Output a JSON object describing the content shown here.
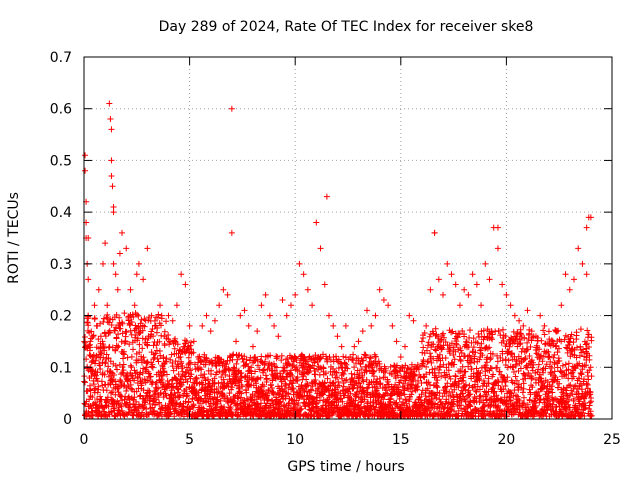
{
  "chart_data": {
    "type": "scatter",
    "title": "Day 289 of 2024, Rate Of TEC Index for receiver ske8",
    "xlabel": "GPS time / hours",
    "ylabel": "ROTI / TECUs",
    "xlim": [
      0,
      25
    ],
    "ylim": [
      0,
      0.7
    ],
    "xticks": [
      0,
      5,
      10,
      15,
      20,
      25
    ],
    "yticks": [
      0,
      0.1,
      0.2,
      0.3,
      0.4,
      0.5,
      0.6,
      0.7
    ],
    "xtick_labels": [
      "0",
      "5",
      "10",
      "15",
      "20",
      "25"
    ],
    "ytick_labels": [
      "0",
      "0.1",
      "0.2",
      "0.3",
      "0.4",
      "0.5",
      "0.6",
      "0.7"
    ],
    "grid": true,
    "marker": "+",
    "series_color": "#ff0000",
    "series": [
      {
        "name": "ROTI",
        "x": [
          0.05,
          0.05,
          0.1,
          0.1,
          0.15,
          0.2,
          0.2,
          0.3,
          0.3,
          0.4,
          0.5,
          0.6,
          0.7,
          0.8,
          0.9,
          1.0,
          1.1,
          1.2,
          1.25,
          1.3,
          1.3,
          1.35,
          1.4,
          1.4,
          1.5,
          1.6,
          1.7,
          1.8,
          2.0,
          2.2,
          2.4,
          2.5,
          2.6,
          2.8,
          3.0,
          3.2,
          3.4,
          3.6,
          3.8,
          4.0,
          4.2,
          4.4,
          4.6,
          4.8,
          5.0,
          5.2,
          5.4,
          5.6,
          5.8,
          6.0,
          6.2,
          6.4,
          6.6,
          6.8,
          7.0,
          7.2,
          7.4,
          7.6,
          7.8,
          8.0,
          8.2,
          8.4,
          8.6,
          8.8,
          9.0,
          9.2,
          9.4,
          9.6,
          9.8,
          10.0,
          10.2,
          10.4,
          10.6,
          10.8,
          11.0,
          11.2,
          11.4,
          11.6,
          11.8,
          12.0,
          12.2,
          12.4,
          12.6,
          12.8,
          13.0,
          13.2,
          13.4,
          13.6,
          13.8,
          14.0,
          14.2,
          14.4,
          14.6,
          14.8,
          15.0,
          15.2,
          15.4,
          15.6,
          15.8,
          16.0,
          16.2,
          16.4,
          16.6,
          16.8,
          17.0,
          17.2,
          17.4,
          17.6,
          17.8,
          18.0,
          18.2,
          18.4,
          18.6,
          18.8,
          19.0,
          19.2,
          19.4,
          19.6,
          19.8,
          20.0,
          20.2,
          20.4,
          20.6,
          20.8,
          21.0,
          21.2,
          21.4,
          21.6,
          21.8,
          22.0,
          22.2,
          22.4,
          22.6,
          22.8,
          23.0,
          23.2,
          23.4,
          23.6,
          23.8,
          24.0,
          0.1,
          0.2,
          1.3,
          1.4,
          7.0,
          11.5,
          16.6,
          19.6,
          23.8,
          23.9
        ],
        "y": [
          0.51,
          0.48,
          0.42,
          0.35,
          0.3,
          0.27,
          0.2,
          0.15,
          0.1,
          0.12,
          0.22,
          0.18,
          0.25,
          0.16,
          0.3,
          0.34,
          0.22,
          0.61,
          0.58,
          0.56,
          0.47,
          0.45,
          0.4,
          0.3,
          0.28,
          0.25,
          0.32,
          0.36,
          0.33,
          0.25,
          0.22,
          0.28,
          0.3,
          0.27,
          0.33,
          0.2,
          0.18,
          0.22,
          0.16,
          0.2,
          0.19,
          0.22,
          0.28,
          0.26,
          0.18,
          0.15,
          0.12,
          0.18,
          0.2,
          0.17,
          0.19,
          0.22,
          0.25,
          0.24,
          0.36,
          0.15,
          0.2,
          0.21,
          0.18,
          0.14,
          0.17,
          0.22,
          0.24,
          0.2,
          0.18,
          0.16,
          0.23,
          0.2,
          0.22,
          0.24,
          0.3,
          0.28,
          0.25,
          0.22,
          0.38,
          0.33,
          0.26,
          0.2,
          0.18,
          0.16,
          0.14,
          0.18,
          0.12,
          0.14,
          0.15,
          0.17,
          0.21,
          0.18,
          0.2,
          0.25,
          0.23,
          0.22,
          0.18,
          0.15,
          0.12,
          0.14,
          0.2,
          0.19,
          0.1,
          0.15,
          0.18,
          0.25,
          0.36,
          0.27,
          0.24,
          0.3,
          0.28,
          0.26,
          0.22,
          0.25,
          0.24,
          0.28,
          0.26,
          0.22,
          0.3,
          0.27,
          0.37,
          0.33,
          0.26,
          0.24,
          0.22,
          0.2,
          0.19,
          0.18,
          0.21,
          0.17,
          0.16,
          0.2,
          0.18,
          0.12,
          0.15,
          0.17,
          0.22,
          0.28,
          0.25,
          0.27,
          0.33,
          0.3,
          0.28,
          0.39,
          0.38,
          0.35,
          0.5,
          0.41,
          0.6,
          0.43,
          0.36,
          0.37,
          0.37,
          0.39
        ]
      }
    ],
    "density_note": "Dense cloud of additional points between 0 and ~0.2 across the whole day, denser and higher near 0-4 h and 16-24 h."
  }
}
